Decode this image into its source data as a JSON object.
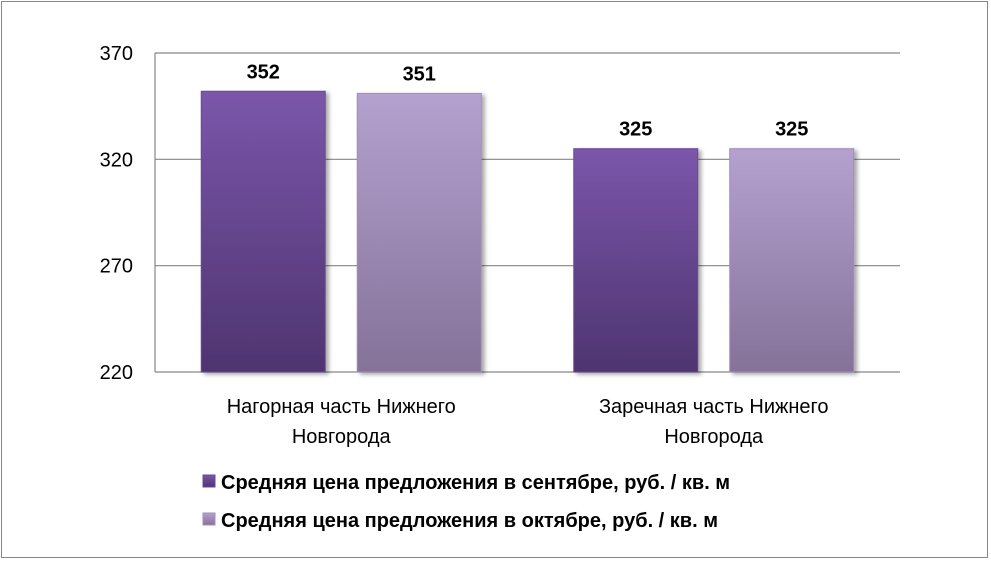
{
  "chart_data": {
    "type": "bar",
    "categories": [
      "Нагорная часть Нижнего Новгорода",
      "Заречная часть Нижнего Новгорода"
    ],
    "category_lines": [
      [
        "Нагорная часть Нижнего",
        "Новгорода"
      ],
      [
        "Заречная часть Нижнего",
        "Новгорода"
      ]
    ],
    "series": [
      {
        "name": "Средняя цена предложения в сентябре, руб.  / кв. м",
        "values": [
          352,
          325
        ],
        "color": "#6a4a94"
      },
      {
        "name": "Средняя цена предложения в октябре, руб.  / кв. м",
        "values": [
          351,
          325
        ],
        "color": "#a08cbc"
      }
    ],
    "ylim": [
      220,
      370
    ],
    "yticks": [
      220,
      270,
      320,
      370
    ],
    "grid": true,
    "legend_position": "bottom"
  }
}
